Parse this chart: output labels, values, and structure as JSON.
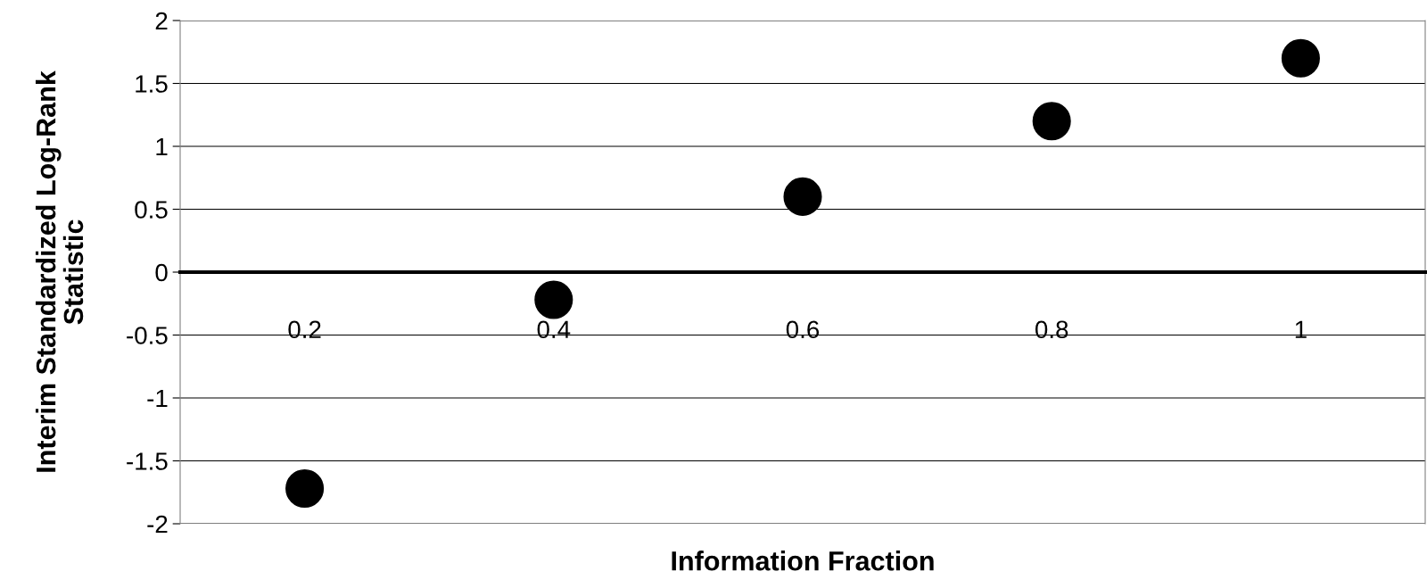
{
  "chart_data": {
    "type": "scatter",
    "xlabel": "Information Fraction",
    "ylabel": "Interim Standardized Log-Rank\nStatistic",
    "categories": [
      "0.2",
      "0.4",
      "0.6",
      "0.8",
      "1"
    ],
    "series": [
      {
        "color": "#000000",
        "values": [
          -1.72,
          -0.22,
          0.6,
          1.2,
          1.7
        ]
      }
    ],
    "ylim": [
      -2,
      2
    ],
    "yticks": [
      -2,
      -1.5,
      -1,
      -0.5,
      0,
      0.5,
      1,
      1.5,
      2
    ],
    "grid": "y",
    "marker": "circle",
    "legend": false
  }
}
